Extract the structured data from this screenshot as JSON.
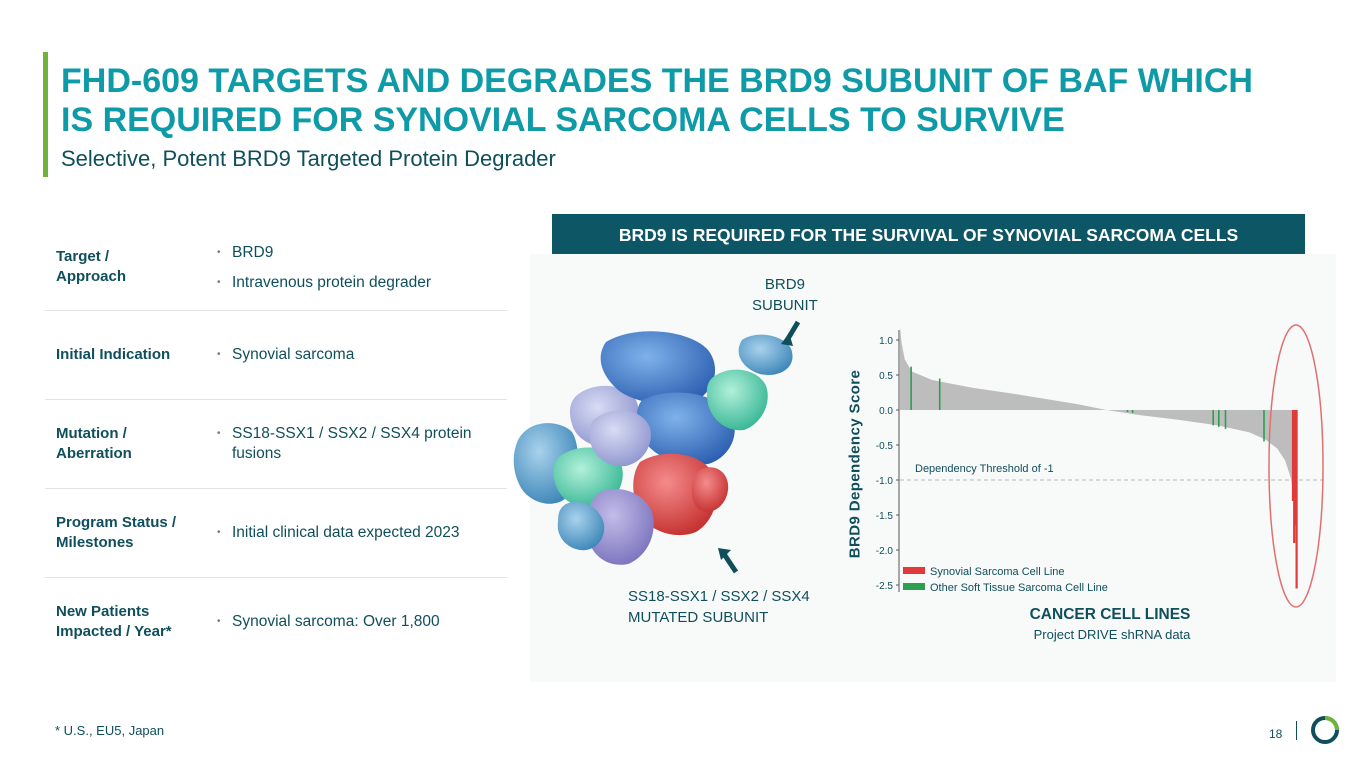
{
  "slide": {
    "title_line1": "FHD-609 TARGETS AND DEGRADES THE BRD9 SUBUNIT OF BAF WHICH",
    "title_line2": "IS REQUIRED FOR SYNOVIAL SARCOMA CELLS TO SURVIVE",
    "subtitle": "Selective, Potent BRD9 Targeted Protein Degrader",
    "footnote": "* U.S., EU5, Japan",
    "page_number": "18",
    "colors": {
      "title": "#0e9aa7",
      "dark_teal": "#0f4f5c",
      "banner_bg": "#0d5665",
      "accent_green": "#6fb33b"
    }
  },
  "table": {
    "rows": [
      {
        "label_line1": "Target /",
        "label_line2": "Approach",
        "items": [
          "BRD9",
          "Intravenous protein degrader"
        ]
      },
      {
        "label_line1": "Initial Indication",
        "items": [
          "Synovial sarcoma"
        ]
      },
      {
        "label_line1": "Mutation /",
        "label_line2": "Aberration",
        "items": [
          "SS18-SSX1 / SSX2 / SSX4 protein fusions"
        ]
      },
      {
        "label_line1": "Program Status /",
        "label_line2": "Milestones",
        "items": [
          "Initial clinical data expected 2023"
        ]
      },
      {
        "label_line1": "New Patients",
        "label_line2": "Impacted / Year*",
        "items": [
          "Synovial sarcoma: Over 1,800"
        ]
      }
    ]
  },
  "figure": {
    "banner": "BRD9 IS REQUIRED FOR THE SURVIVAL OF SYNOVIAL SARCOMA CELLS",
    "protein_label_top_line1": "BRD9",
    "protein_label_top_line2": "SUBUNIT",
    "protein_label_bottom_line1": "SS18-SSX1 / SSX2 / SSX4",
    "protein_label_bottom_line2": "MUTATED SUBUNIT",
    "protein_image": "3d-protein-complex-render"
  },
  "chart_data": {
    "type": "bar",
    "ylabel": "BRD9 Dependency Score",
    "xlabel": "CANCER CELL LINES",
    "xlabel_sub": "Project DRIVE shRNA data",
    "ylim": [
      -2.6,
      1.15
    ],
    "yticks": [
      1.0,
      0.5,
      0.0,
      -0.5,
      -1.0,
      -1.5,
      -2.0,
      -2.5
    ],
    "ytick_labels": [
      "1.0",
      "0.5",
      "0.0",
      "-0.5",
      "-1.0",
      "-1.5",
      "-2.0",
      "-2.5"
    ],
    "threshold": {
      "value": -1.0,
      "label": "Dependency Threshold of -1"
    },
    "grid": false,
    "legend_position": "bottom-left",
    "series": [
      {
        "name": "Synovial Sarcoma Cell Line",
        "color": "#e03a3a"
      },
      {
        "name": "Other Soft Tissue Sarcoma Cell Line",
        "color": "#2e9e4f"
      }
    ],
    "background_color": "#bdbdbd",
    "curve_profile": [
      [
        0.0,
        1.18
      ],
      [
        0.004,
        0.96
      ],
      [
        0.012,
        0.72
      ],
      [
        0.03,
        0.55
      ],
      [
        0.08,
        0.43
      ],
      [
        0.18,
        0.32
      ],
      [
        0.3,
        0.22
      ],
      [
        0.45,
        0.08
      ],
      [
        0.52,
        0.0
      ],
      [
        0.6,
        -0.07
      ],
      [
        0.7,
        -0.14
      ],
      [
        0.8,
        -0.22
      ],
      [
        0.88,
        -0.32
      ],
      [
        0.92,
        -0.42
      ],
      [
        0.95,
        -0.55
      ],
      [
        0.97,
        -0.72
      ],
      [
        0.985,
        -0.98
      ],
      [
        0.993,
        -1.3
      ],
      [
        1.0,
        -1.9
      ]
    ],
    "highlights": [
      {
        "series": 1,
        "pos": 0.028,
        "value": 0.62
      },
      {
        "series": 1,
        "pos": 0.1,
        "value": 0.45
      },
      {
        "series": 1,
        "pos": 0.573,
        "value": -0.03
      },
      {
        "series": 1,
        "pos": 0.586,
        "value": -0.04
      },
      {
        "series": 1,
        "pos": 0.789,
        "value": -0.22
      },
      {
        "series": 1,
        "pos": 0.803,
        "value": -0.24
      },
      {
        "series": 1,
        "pos": 0.82,
        "value": -0.27
      },
      {
        "series": 1,
        "pos": 0.917,
        "value": -0.45
      },
      {
        "series": 0,
        "pos": 0.99,
        "value": -1.3
      },
      {
        "series": 0,
        "pos": 0.993,
        "value": -1.9
      },
      {
        "series": 0,
        "pos": 0.996,
        "value": -1.65
      },
      {
        "series": 0,
        "pos": 0.999,
        "value": -2.55
      }
    ],
    "callout": "ellipse around synovial sarcoma cell lines"
  }
}
